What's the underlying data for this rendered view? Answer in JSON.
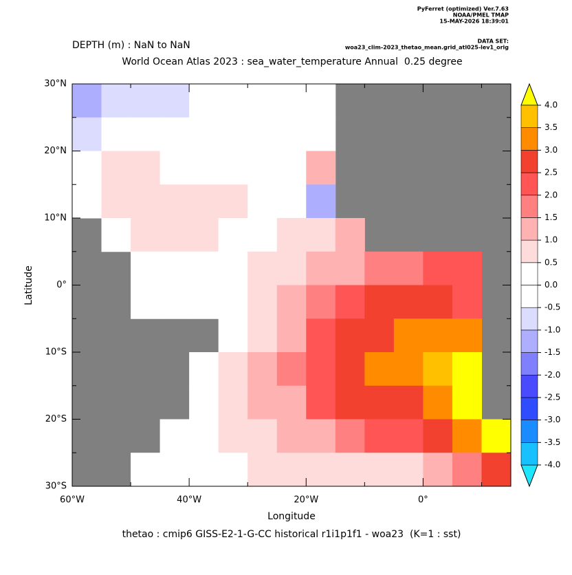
{
  "chart_data": {
    "type": "heatmap",
    "header": [
      "PyFerret (optimized) Ver.7.63",
      "NOAA/PMEL TMAP",
      "15-MAY-2026 18:39:01"
    ],
    "dataset_label": "DATA SET:",
    "dataset": "woa23_clim-2023_thetao_mean.grid_atl025-lev1_orig",
    "subtitle": "DEPTH (m) : NaN to NaN",
    "title": "World Ocean Atlas 2023 : sea_water_temperature Annual  0.25 degree",
    "xlabel": "Longitude",
    "ylabel": "Latitude",
    "caption": "thetao : cmip6 GISS-E2-1-G-CC historical r1i1p1f1 - woa23  (K=1 : sst)",
    "xlim": [
      -60,
      15
    ],
    "ylim": [
      -30,
      30
    ],
    "xticks": [
      {
        "value": -60,
        "label": "60°W"
      },
      {
        "value": -40,
        "label": "40°W"
      },
      {
        "value": -20,
        "label": "20°W"
      },
      {
        "value": 0,
        "label": "0°"
      }
    ],
    "xminorticks": [
      -50,
      -30,
      -10,
      10
    ],
    "yticks": [
      {
        "value": 30,
        "label": "30°N"
      },
      {
        "value": 20,
        "label": "20°N"
      },
      {
        "value": 10,
        "label": "10°N"
      },
      {
        "value": 0,
        "label": "0°"
      },
      {
        "value": -10,
        "label": "10°S"
      },
      {
        "value": -20,
        "label": "20°S"
      },
      {
        "value": -30,
        "label": "30°S"
      }
    ],
    "yminorticks": [
      25,
      15,
      5,
      -5,
      -15,
      -25
    ],
    "land_color": "#808080",
    "x": [
      -57.5,
      -52.5,
      -47.5,
      -42.5,
      -37.5,
      -32.5,
      -27.5,
      -22.5,
      -17.5,
      -12.5,
      -7.5,
      -2.5,
      2.5,
      7.5,
      12.5
    ],
    "y": [
      27.5,
      22.5,
      17.5,
      12.5,
      7.5,
      2.5,
      -2.5,
      -7.5,
      -12.5,
      -17.5,
      -22.5,
      -27.5
    ],
    "values": [
      [
        -1.2,
        -1,
        -0.8,
        -0.6,
        -0.3,
        0,
        0,
        0.3,
        0.3,
        null,
        null,
        null,
        null,
        null,
        null
      ],
      [
        -0.7,
        -0.3,
        0,
        0,
        0,
        0,
        0,
        0,
        -0.4,
        null,
        null,
        null,
        null,
        null,
        null
      ],
      [
        0.2,
        0.6,
        0.7,
        0.3,
        0.2,
        0.1,
        0.1,
        0.2,
        1.0,
        null,
        null,
        null,
        null,
        null,
        null
      ],
      [
        0.2,
        0.6,
        0.7,
        0.7,
        0.6,
        0.5,
        0.3,
        0.2,
        -1.2,
        null,
        null,
        null,
        null,
        null,
        null
      ],
      [
        null,
        0.3,
        0.6,
        0.6,
        0.5,
        0.4,
        0.3,
        0.7,
        0.8,
        1.2,
        null,
        null,
        null,
        null,
        null
      ],
      [
        null,
        null,
        0.3,
        0.2,
        0.3,
        0.4,
        0.7,
        0.9,
        1.2,
        1.3,
        1.7,
        1.8,
        2.0,
        2.0,
        null
      ],
      [
        null,
        null,
        0.2,
        0.2,
        0.3,
        0.4,
        0.8,
        1.2,
        1.7,
        2.0,
        2.5,
        2.6,
        2.8,
        2.3,
        null
      ],
      [
        null,
        null,
        null,
        null,
        null,
        0.4,
        0.8,
        1.2,
        2.2,
        2.5,
        2.8,
        3.2,
        3.3,
        3.3,
        null
      ],
      [
        null,
        null,
        null,
        null,
        0.3,
        0.7,
        1.2,
        1.8,
        2.4,
        2.7,
        3.0,
        3.3,
        3.5,
        4.2,
        null
      ],
      [
        null,
        null,
        null,
        null,
        0.3,
        0.6,
        1.0,
        1.3,
        2.3,
        2.6,
        2.7,
        2.9,
        3.2,
        4.3,
        null
      ],
      [
        null,
        null,
        null,
        0.2,
        0.3,
        0.5,
        0.8,
        1.0,
        1.4,
        1.8,
        2.0,
        2.2,
        2.6,
        3.2,
        4.2
      ],
      [
        null,
        null,
        0.3,
        0.3,
        0.2,
        0.4,
        0.5,
        0.6,
        0.7,
        0.7,
        0.8,
        0.8,
        1.0,
        1.5,
        2.5
      ]
    ],
    "levels": [
      {
        "value": -4,
        "label": "-4.0"
      },
      {
        "value": -3.5,
        "label": "-3.5"
      },
      {
        "value": -3,
        "label": "-3.0"
      },
      {
        "value": -2.5,
        "label": "-2.5"
      },
      {
        "value": -2,
        "label": "-2.0"
      },
      {
        "value": -1.5,
        "label": "-1.5"
      },
      {
        "value": -1,
        "label": "-1.0"
      },
      {
        "value": -0.5,
        "label": "-0.5"
      },
      {
        "value": 0,
        "label": "0.0"
      },
      {
        "value": 0.5,
        "label": "0.5"
      },
      {
        "value": 1,
        "label": "1.0"
      },
      {
        "value": 1.5,
        "label": "1.5"
      },
      {
        "value": 2,
        "label": "2.0"
      },
      {
        "value": 2.5,
        "label": "2.5"
      },
      {
        "value": 3,
        "label": "3.0"
      },
      {
        "value": 3.5,
        "label": "3.5"
      },
      {
        "value": 4,
        "label": "4.0"
      }
    ],
    "colors": [
      "#1ee6ff",
      "#19c0ff",
      "#1a8cff",
      "#2f4dff",
      "#4a4aff",
      "#8080ff",
      "#aeaeff",
      "#dcdcff",
      "#ffffff",
      "#ffffff",
      "#ffdcdc",
      "#ffb2b2",
      "#ff8080",
      "#ff5555",
      "#f2412f",
      "#ff8c00",
      "#ffc000",
      "#ffff00"
    ]
  }
}
